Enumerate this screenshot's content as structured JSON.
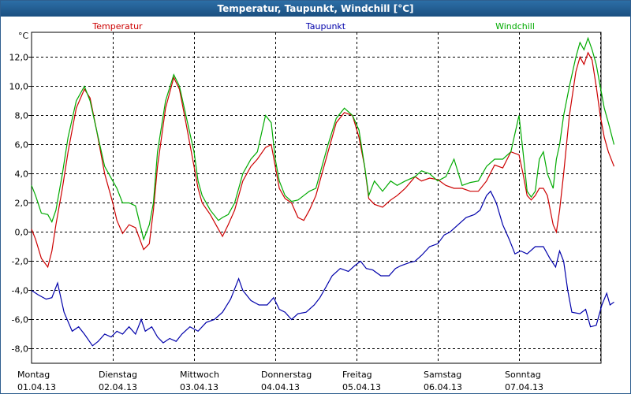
{
  "window_title": "Temperatur, Taupunkt, Windchill [°C]",
  "chart_data": {
    "type": "line",
    "title": "Temperatur, Taupunkt, Windchill [°C]",
    "y_unit_label": "°C",
    "ylim": [
      -9,
      13.7
    ],
    "yticks": [
      -8,
      -6,
      -4,
      -2,
      0,
      2,
      4,
      6,
      8,
      10,
      12
    ],
    "ytick_labels": [
      "-8,0",
      "-6,0",
      "-4,0",
      "-2,0",
      "0,0",
      "2,0",
      "4,0",
      "6,0",
      "8,0",
      "10,0",
      "12,0"
    ],
    "xlim": [
      0,
      7.3
    ],
    "x_unit": "days since 01.04.13 00:00",
    "x_ticks": [
      {
        "day": "Montag",
        "date": "01.04.13"
      },
      {
        "day": "Dienstag",
        "date": "02.04.13"
      },
      {
        "day": "Mittwoch",
        "date": "03.04.13"
      },
      {
        "day": "Donnerstag",
        "date": "04.04.13"
      },
      {
        "day": "Freitag",
        "date": "05.04.13"
      },
      {
        "day": "Samstag",
        "date": "06.04.13"
      },
      {
        "day": "Sonntag",
        "date": "07.04.13"
      }
    ],
    "grid": true,
    "legend_position": "top",
    "series": [
      {
        "name": "Temperatur",
        "color": "#cc0000",
        "points": [
          [
            0,
            0.2
          ],
          [
            0.05,
            -0.5
          ],
          [
            0.12,
            -1.8
          ],
          [
            0.2,
            -2.4
          ],
          [
            0.25,
            -1.3
          ],
          [
            0.3,
            0.5
          ],
          [
            0.38,
            3.0
          ],
          [
            0.45,
            5.5
          ],
          [
            0.55,
            8.5
          ],
          [
            0.65,
            9.8
          ],
          [
            0.72,
            9.2
          ],
          [
            0.8,
            7.0
          ],
          [
            0.9,
            4.0
          ],
          [
            1.0,
            2.0
          ],
          [
            1.05,
            0.8
          ],
          [
            1.12,
            -0.1
          ],
          [
            1.2,
            0.5
          ],
          [
            1.28,
            0.3
          ],
          [
            1.38,
            -1.2
          ],
          [
            1.45,
            -0.8
          ],
          [
            1.5,
            1.5
          ],
          [
            1.55,
            4.5
          ],
          [
            1.65,
            8.5
          ],
          [
            1.75,
            10.6
          ],
          [
            1.82,
            9.8
          ],
          [
            1.9,
            7.5
          ],
          [
            2.0,
            4.5
          ],
          [
            2.05,
            3.0
          ],
          [
            2.1,
            2.0
          ],
          [
            2.2,
            1.2
          ],
          [
            2.3,
            0.2
          ],
          [
            2.35,
            -0.3
          ],
          [
            2.42,
            0.5
          ],
          [
            2.5,
            1.5
          ],
          [
            2.6,
            3.5
          ],
          [
            2.7,
            4.5
          ],
          [
            2.78,
            5.0
          ],
          [
            2.88,
            5.8
          ],
          [
            2.95,
            6.0
          ],
          [
            3.0,
            4.5
          ],
          [
            3.05,
            3.0
          ],
          [
            3.12,
            2.3
          ],
          [
            3.2,
            2.0
          ],
          [
            3.28,
            1.0
          ],
          [
            3.35,
            0.8
          ],
          [
            3.42,
            1.5
          ],
          [
            3.5,
            2.5
          ],
          [
            3.55,
            3.5
          ],
          [
            3.65,
            5.5
          ],
          [
            3.75,
            7.5
          ],
          [
            3.85,
            8.2
          ],
          [
            3.95,
            8.0
          ],
          [
            4.03,
            6.5
          ],
          [
            4.1,
            4.5
          ],
          [
            4.15,
            2.3
          ],
          [
            4.22,
            1.9
          ],
          [
            4.32,
            1.7
          ],
          [
            4.42,
            2.2
          ],
          [
            4.5,
            2.5
          ],
          [
            4.6,
            3.0
          ],
          [
            4.72,
            3.8
          ],
          [
            4.8,
            3.5
          ],
          [
            4.9,
            3.7
          ],
          [
            5.0,
            3.6
          ],
          [
            5.1,
            3.2
          ],
          [
            5.2,
            3.0
          ],
          [
            5.3,
            3.0
          ],
          [
            5.4,
            2.8
          ],
          [
            5.5,
            2.8
          ],
          [
            5.6,
            3.5
          ],
          [
            5.7,
            4.6
          ],
          [
            5.8,
            4.4
          ],
          [
            5.9,
            5.5
          ],
          [
            6.0,
            5.3
          ],
          [
            6.05,
            4.0
          ],
          [
            6.1,
            2.5
          ],
          [
            6.15,
            2.2
          ],
          [
            6.2,
            2.5
          ],
          [
            6.25,
            3.0
          ],
          [
            6.3,
            3.0
          ],
          [
            6.35,
            2.5
          ],
          [
            6.42,
            0.5
          ],
          [
            6.46,
            0.0
          ],
          [
            6.5,
            1.5
          ],
          [
            6.55,
            4.0
          ],
          [
            6.62,
            8.0
          ],
          [
            6.7,
            11.0
          ],
          [
            6.75,
            12.0
          ],
          [
            6.8,
            11.5
          ],
          [
            6.85,
            12.3
          ],
          [
            6.9,
            11.8
          ],
          [
            6.95,
            10.0
          ],
          [
            7.0,
            8.0
          ],
          [
            7.05,
            6.5
          ],
          [
            7.1,
            5.5
          ],
          [
            7.17,
            4.5
          ]
        ]
      },
      {
        "name": "Taupunkt",
        "color": "#0000aa",
        "points": [
          [
            0,
            -4.0
          ],
          [
            0.08,
            -4.3
          ],
          [
            0.18,
            -4.6
          ],
          [
            0.25,
            -4.5
          ],
          [
            0.32,
            -3.5
          ],
          [
            0.4,
            -5.5
          ],
          [
            0.5,
            -6.8
          ],
          [
            0.58,
            -6.5
          ],
          [
            0.65,
            -7.0
          ],
          [
            0.75,
            -7.8
          ],
          [
            0.82,
            -7.5
          ],
          [
            0.9,
            -7.0
          ],
          [
            0.98,
            -7.2
          ],
          [
            1.05,
            -6.8
          ],
          [
            1.12,
            -7.0
          ],
          [
            1.2,
            -6.5
          ],
          [
            1.28,
            -7.0
          ],
          [
            1.35,
            -6.0
          ],
          [
            1.4,
            -6.8
          ],
          [
            1.48,
            -6.5
          ],
          [
            1.55,
            -7.2
          ],
          [
            1.62,
            -7.6
          ],
          [
            1.7,
            -7.3
          ],
          [
            1.78,
            -7.5
          ],
          [
            1.85,
            -7.0
          ],
          [
            1.95,
            -6.5
          ],
          [
            2.05,
            -6.8
          ],
          [
            2.15,
            -6.2
          ],
          [
            2.25,
            -6.0
          ],
          [
            2.35,
            -5.5
          ],
          [
            2.45,
            -4.6
          ],
          [
            2.55,
            -3.2
          ],
          [
            2.6,
            -4.0
          ],
          [
            2.7,
            -4.7
          ],
          [
            2.8,
            -5.0
          ],
          [
            2.9,
            -5.0
          ],
          [
            2.98,
            -4.5
          ],
          [
            3.05,
            -5.3
          ],
          [
            3.12,
            -5.5
          ],
          [
            3.2,
            -6.0
          ],
          [
            3.28,
            -5.6
          ],
          [
            3.38,
            -5.5
          ],
          [
            3.48,
            -5.0
          ],
          [
            3.55,
            -4.5
          ],
          [
            3.62,
            -3.8
          ],
          [
            3.7,
            -3.0
          ],
          [
            3.8,
            -2.5
          ],
          [
            3.9,
            -2.7
          ],
          [
            3.98,
            -2.3
          ],
          [
            4.05,
            -2.0
          ],
          [
            4.12,
            -2.5
          ],
          [
            4.2,
            -2.6
          ],
          [
            4.3,
            -3.0
          ],
          [
            4.4,
            -3.0
          ],
          [
            4.48,
            -2.5
          ],
          [
            4.55,
            -2.3
          ],
          [
            4.65,
            -2.1
          ],
          [
            4.72,
            -2.0
          ],
          [
            4.8,
            -1.6
          ],
          [
            4.9,
            -1.0
          ],
          [
            5.0,
            -0.8
          ],
          [
            5.08,
            -0.2
          ],
          [
            5.15,
            0.0
          ],
          [
            5.25,
            0.5
          ],
          [
            5.35,
            1.0
          ],
          [
            5.45,
            1.2
          ],
          [
            5.52,
            1.5
          ],
          [
            5.6,
            2.5
          ],
          [
            5.65,
            2.8
          ],
          [
            5.72,
            2.0
          ],
          [
            5.8,
            0.5
          ],
          [
            5.88,
            -0.5
          ],
          [
            5.95,
            -1.5
          ],
          [
            6.02,
            -1.3
          ],
          [
            6.1,
            -1.5
          ],
          [
            6.2,
            -1.0
          ],
          [
            6.3,
            -1.0
          ],
          [
            6.38,
            -1.8
          ],
          [
            6.45,
            -2.4
          ],
          [
            6.5,
            -1.3
          ],
          [
            6.55,
            -2.0
          ],
          [
            6.6,
            -4.0
          ],
          [
            6.65,
            -5.5
          ],
          [
            6.75,
            -5.6
          ],
          [
            6.82,
            -5.3
          ],
          [
            6.88,
            -6.5
          ],
          [
            6.95,
            -6.4
          ],
          [
            7.02,
            -5.0
          ],
          [
            7.08,
            -4.2
          ],
          [
            7.12,
            -5.0
          ],
          [
            7.17,
            -4.8
          ]
        ]
      },
      {
        "name": "Windchill",
        "color": "#00aa00",
        "points": [
          [
            0,
            3.2
          ],
          [
            0.05,
            2.5
          ],
          [
            0.12,
            1.3
          ],
          [
            0.2,
            1.2
          ],
          [
            0.25,
            0.7
          ],
          [
            0.3,
            1.5
          ],
          [
            0.38,
            4.0
          ],
          [
            0.45,
            6.5
          ],
          [
            0.55,
            9.0
          ],
          [
            0.65,
            10.0
          ],
          [
            0.72,
            9.0
          ],
          [
            0.8,
            7.0
          ],
          [
            0.9,
            4.5
          ],
          [
            1.0,
            3.5
          ],
          [
            1.05,
            3.0
          ],
          [
            1.12,
            2.0
          ],
          [
            1.2,
            2.0
          ],
          [
            1.28,
            1.8
          ],
          [
            1.38,
            -0.5
          ],
          [
            1.45,
            0.5
          ],
          [
            1.5,
            2.0
          ],
          [
            1.55,
            5.5
          ],
          [
            1.65,
            9.0
          ],
          [
            1.75,
            10.8
          ],
          [
            1.82,
            10.0
          ],
          [
            1.9,
            8.0
          ],
          [
            2.0,
            5.5
          ],
          [
            2.05,
            3.5
          ],
          [
            2.1,
            2.5
          ],
          [
            2.2,
            1.5
          ],
          [
            2.3,
            0.8
          ],
          [
            2.35,
            1.0
          ],
          [
            2.42,
            1.2
          ],
          [
            2.5,
            2.0
          ],
          [
            2.6,
            4.0
          ],
          [
            2.7,
            5.0
          ],
          [
            2.78,
            5.5
          ],
          [
            2.88,
            8.0
          ],
          [
            2.95,
            7.5
          ],
          [
            3.0,
            5.0
          ],
          [
            3.05,
            3.5
          ],
          [
            3.12,
            2.5
          ],
          [
            3.2,
            2.1
          ],
          [
            3.28,
            2.2
          ],
          [
            3.35,
            2.5
          ],
          [
            3.42,
            2.8
          ],
          [
            3.5,
            3.0
          ],
          [
            3.55,
            4.0
          ],
          [
            3.65,
            6.0
          ],
          [
            3.75,
            7.8
          ],
          [
            3.85,
            8.5
          ],
          [
            3.95,
            8.0
          ],
          [
            4.03,
            7.0
          ],
          [
            4.1,
            4.5
          ],
          [
            4.15,
            2.5
          ],
          [
            4.22,
            3.5
          ],
          [
            4.32,
            2.8
          ],
          [
            4.42,
            3.5
          ],
          [
            4.5,
            3.2
          ],
          [
            4.6,
            3.5
          ],
          [
            4.72,
            3.8
          ],
          [
            4.8,
            4.2
          ],
          [
            4.9,
            4.0
          ],
          [
            5.0,
            3.5
          ],
          [
            5.1,
            3.8
          ],
          [
            5.2,
            5.0
          ],
          [
            5.3,
            3.2
          ],
          [
            5.4,
            3.4
          ],
          [
            5.5,
            3.5
          ],
          [
            5.6,
            4.5
          ],
          [
            5.7,
            5.0
          ],
          [
            5.8,
            5.0
          ],
          [
            5.9,
            5.5
          ],
          [
            6.0,
            8.0
          ],
          [
            6.05,
            5.5
          ],
          [
            6.1,
            2.8
          ],
          [
            6.15,
            2.4
          ],
          [
            6.2,
            2.8
          ],
          [
            6.25,
            5.0
          ],
          [
            6.3,
            5.5
          ],
          [
            6.35,
            4.0
          ],
          [
            6.42,
            3.0
          ],
          [
            6.46,
            5.0
          ],
          [
            6.5,
            6.0
          ],
          [
            6.55,
            8.0
          ],
          [
            6.62,
            10.0
          ],
          [
            6.7,
            12.0
          ],
          [
            6.75,
            13.0
          ],
          [
            6.8,
            12.5
          ],
          [
            6.85,
            13.3
          ],
          [
            6.9,
            12.5
          ],
          [
            6.95,
            11.5
          ],
          [
            7.0,
            10.0
          ],
          [
            7.05,
            8.5
          ],
          [
            7.1,
            7.5
          ],
          [
            7.17,
            6.0
          ]
        ]
      }
    ]
  }
}
